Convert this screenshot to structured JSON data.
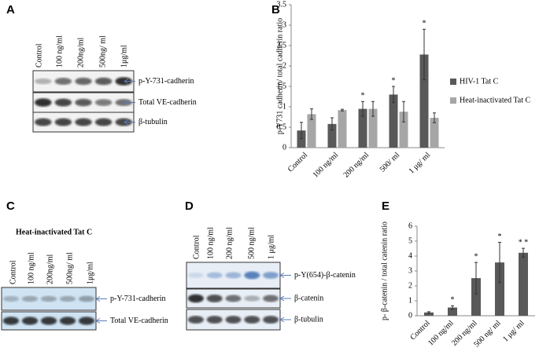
{
  "panels": {
    "A": {
      "label": "A",
      "lanes": [
        "Control",
        "100 ng/ml",
        "200ng/ml",
        "500ng/ ml",
        "1μg/ml"
      ],
      "bands": [
        "p-Y-731-cadherin",
        "Total  VE-cadherin",
        "β-tubulin"
      ]
    },
    "C": {
      "label": "C",
      "header": "Heat-inactivated   Tat C",
      "lanes": [
        "Control",
        "100 ng/ml",
        "200ng/ml",
        "500ng/ ml",
        "1μg/ml"
      ],
      "bands": [
        "p-Y-731-cadherin",
        "Total  VE-cadherin"
      ]
    },
    "D": {
      "label": "D",
      "lanes": [
        "Control",
        "100 ng/ml",
        "200 ng/ml",
        "500 ng/ml",
        "1 μg/ml"
      ],
      "bands": [
        "p-Y(654)-β-catenin",
        "β-catenin",
        "β-tubulin"
      ]
    }
  },
  "chart_data": [
    {
      "type": "bar",
      "panel_label": "B",
      "ylabel": "p-Y731 cadherin/ total cadherin  ratio",
      "categories": [
        "Control",
        "100 ng/ml",
        "200 ng/ml",
        "500/ ml",
        "1 μg/ ml"
      ],
      "series": [
        {
          "name": "HIV-1 Tat C",
          "color": "#595959",
          "values": [
            0.42,
            0.58,
            0.95,
            1.3,
            2.28
          ],
          "errors": [
            0.2,
            0.15,
            0.18,
            0.2,
            0.62
          ],
          "significance": [
            null,
            null,
            "*",
            "*",
            "*"
          ]
        },
        {
          "name": "Heat-inactivated Tat C",
          "color": "#a6a6a6",
          "values": [
            0.82,
            0.92,
            0.95,
            0.88,
            0.73
          ],
          "errors": [
            0.13,
            0.02,
            0.18,
            0.25,
            0.12
          ]
        }
      ],
      "ylim": [
        0,
        3.5
      ],
      "yticks": [
        0,
        0.5,
        1,
        1.5,
        2,
        2.5,
        3,
        3.5
      ],
      "grid": false,
      "legend": "right"
    },
    {
      "type": "bar",
      "panel_label": "E",
      "ylabel": "p- β-catenin / total catenin  ratio",
      "categories": [
        "Control",
        "100 ng/ml",
        "200 ng/ml",
        "500 ng/ ml",
        "1 μg/ ml"
      ],
      "series": [
        {
          "name": "HIV-1 Tat C",
          "color": "#595959",
          "values": [
            0.22,
            0.55,
            2.52,
            3.57,
            4.22
          ],
          "errors": [
            0.05,
            0.12,
            1.05,
            1.35,
            0.3
          ],
          "significance": [
            null,
            "*",
            "*",
            "*",
            "* *"
          ]
        }
      ],
      "ylim": [
        0,
        6
      ],
      "yticks": [
        0,
        1,
        2,
        3,
        4,
        5,
        6
      ],
      "grid": false
    }
  ]
}
